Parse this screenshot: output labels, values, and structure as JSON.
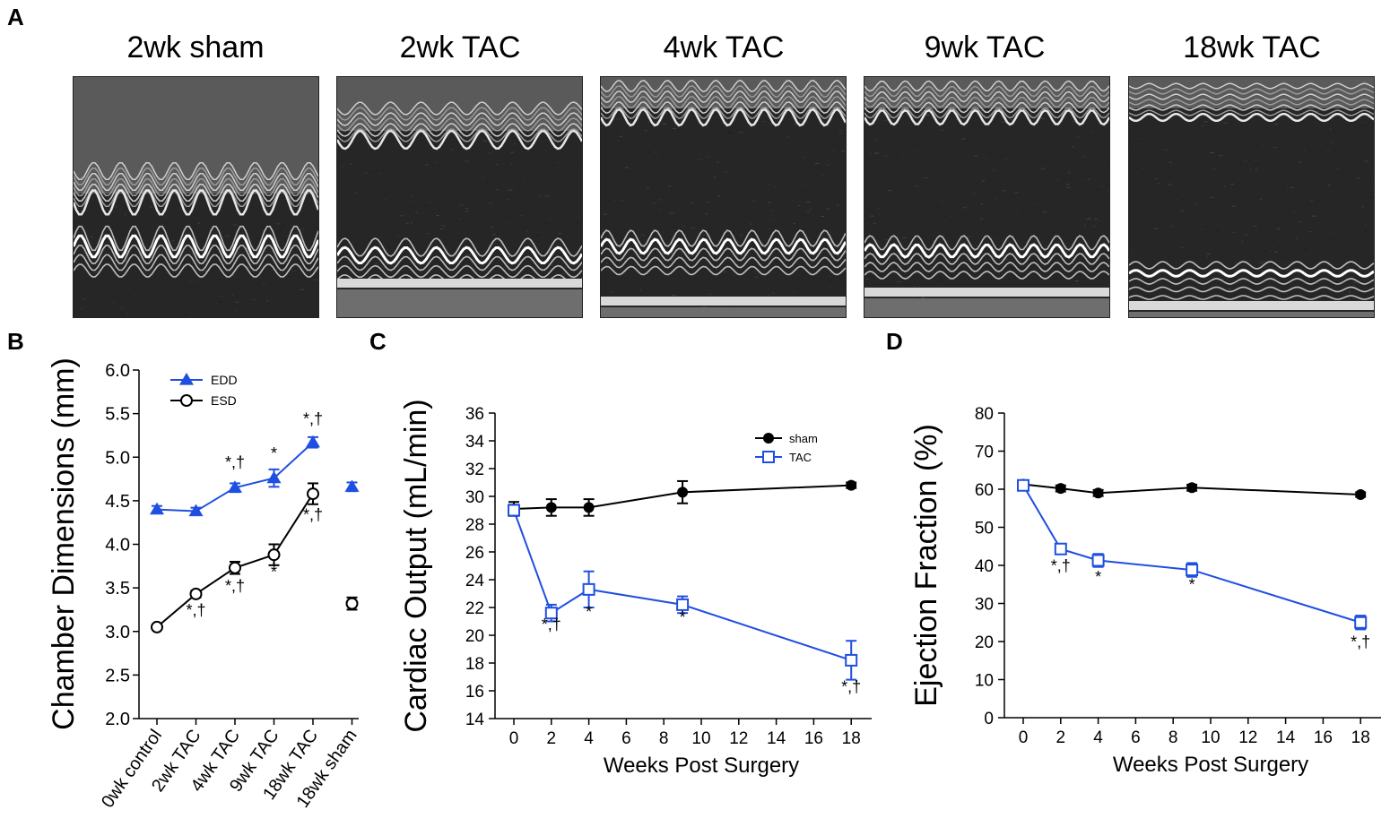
{
  "panels": {
    "a": "A",
    "b": "B",
    "c": "C",
    "d": "D"
  },
  "echo_titles": [
    "2wk sham",
    "2wk TAC",
    "4wk TAC",
    "9wk TAC",
    "18wk TAC"
  ],
  "colors": {
    "blue": "#1f4fe0",
    "black": "#000000"
  },
  "chart_data": [
    {
      "type": "line",
      "panel": "B",
      "ylabel": "Chamber Dimensions (mm)",
      "ylim": [
        2.0,
        6.0
      ],
      "yticks": [
        "2.0",
        "2.5",
        "3.0",
        "3.5",
        "4.0",
        "4.5",
        "5.0",
        "5.5",
        "6.0"
      ],
      "categories": [
        "0wk control",
        "2wk TAC",
        "4wk TAC",
        "9wk TAC",
        "18wk TAC",
        "18wk sham"
      ],
      "legend_position": "top-left",
      "series": [
        {
          "name": "EDD",
          "color": "#1f4fe0",
          "marker": "filled-triangle",
          "values": [
            4.4,
            4.38,
            4.65,
            4.76,
            5.17,
            4.66
          ],
          "errors": [
            0.04,
            0.04,
            0.05,
            0.1,
            0.06,
            0.05
          ],
          "connected_until": 4
        },
        {
          "name": "ESD",
          "color": "#000000",
          "marker": "open-circle",
          "values": [
            3.05,
            3.43,
            3.73,
            3.88,
            4.58,
            3.32
          ],
          "errors": [
            0.03,
            0.04,
            0.07,
            0.12,
            0.12,
            0.07
          ],
          "connected_until": 4
        }
      ],
      "annotations": [
        {
          "category": "4wk TAC",
          "text": "*,†",
          "anchor": 4.88
        },
        {
          "category": "9wk TAC",
          "text": "*",
          "anchor": 4.98
        },
        {
          "category": "18wk TAC",
          "text": "*,†",
          "anchor": 5.38
        },
        {
          "category": "2wk TAC",
          "text": "*,†",
          "anchor": 3.18
        },
        {
          "category": "4wk TAC",
          "text": "*,†",
          "anchor": 3.46
        },
        {
          "category": "9wk TAC",
          "text": "*",
          "anchor": 3.62
        },
        {
          "category": "18wk TAC",
          "text": "*,†",
          "anchor": 4.28
        }
      ]
    },
    {
      "type": "line",
      "panel": "C",
      "xlabel": "Weeks Post Surgery",
      "ylabel": "Cardiac Output (mL/min)",
      "xlim": [
        -1,
        19
      ],
      "ylim": [
        14,
        36
      ],
      "xticks": [
        0,
        2,
        4,
        6,
        8,
        10,
        12,
        14,
        16,
        18
      ],
      "yticks": [
        14,
        16,
        18,
        20,
        22,
        24,
        26,
        28,
        30,
        32,
        34,
        36
      ],
      "legend_position": "top-right",
      "series": [
        {
          "name": "sham",
          "color": "#000000",
          "marker": "filled-circle",
          "x": [
            0,
            2,
            4,
            9,
            18
          ],
          "values": [
            29.1,
            29.2,
            29.2,
            30.3,
            30.8
          ],
          "errors": [
            0.5,
            0.6,
            0.6,
            0.8,
            0.2
          ]
        },
        {
          "name": "TAC",
          "color": "#1f4fe0",
          "marker": "open-square",
          "x": [
            0,
            2,
            4,
            9,
            18
          ],
          "values": [
            29.0,
            21.6,
            23.3,
            22.2,
            18.2
          ],
          "errors": [
            0.4,
            0.6,
            1.3,
            0.6,
            1.4
          ]
        }
      ],
      "annotations": [
        {
          "x": 2,
          "text": "*,†",
          "anchor": 20.4
        },
        {
          "x": 4,
          "text": "*",
          "anchor": 21.3
        },
        {
          "x": 9,
          "text": "*",
          "anchor": 20.9
        },
        {
          "x": 18,
          "text": "*,†",
          "anchor": 15.9
        }
      ]
    },
    {
      "type": "line",
      "panel": "D",
      "xlabel": "Weeks Post Surgery",
      "ylabel": "Ejection Fraction (%)",
      "xlim": [
        -1,
        19
      ],
      "ylim": [
        0,
        80
      ],
      "xticks": [
        0,
        2,
        4,
        6,
        8,
        10,
        12,
        14,
        16,
        18
      ],
      "yticks": [
        0,
        10,
        20,
        30,
        40,
        50,
        60,
        70,
        80
      ],
      "series": [
        {
          "name": "sham",
          "color": "#000000",
          "marker": "filled-circle",
          "x": [
            0,
            2,
            4,
            9,
            18
          ],
          "values": [
            61.3,
            60.2,
            59.0,
            60.4,
            58.6
          ],
          "errors": [
            0.8,
            0.8,
            0.8,
            0.8,
            0.6
          ]
        },
        {
          "name": "TAC",
          "color": "#1f4fe0",
          "marker": "open-square",
          "x": [
            0,
            2,
            4,
            9,
            18
          ],
          "values": [
            61.0,
            44.3,
            41.3,
            38.8,
            25.0
          ],
          "errors": [
            0.8,
            1.0,
            1.7,
            1.8,
            1.8
          ]
        }
      ],
      "annotations": [
        {
          "x": 2,
          "text": "*,†",
          "anchor": 38.5
        },
        {
          "x": 4,
          "text": "*",
          "anchor": 35.5
        },
        {
          "x": 9,
          "text": "*",
          "anchor": 33.5
        },
        {
          "x": 18,
          "text": "*,†",
          "anchor": 18.5
        }
      ]
    }
  ]
}
